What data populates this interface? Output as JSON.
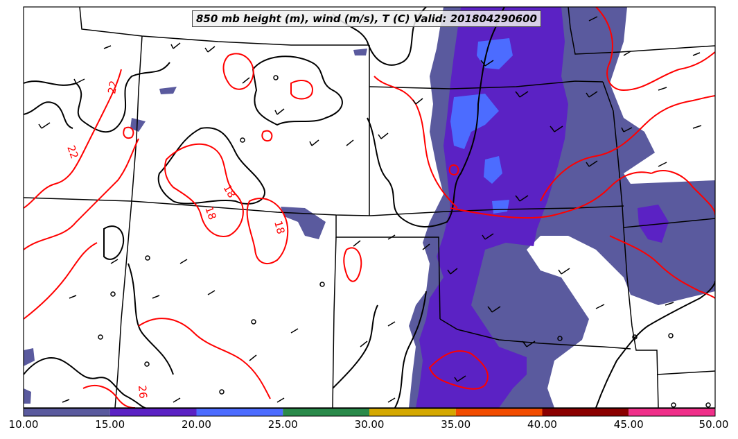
{
  "title": "850 mb height (m), wind (m/s), T (C) Valid: 201804290600",
  "colorbar": {
    "ticks": [
      "10.00",
      "15.00",
      "20.00",
      "25.00",
      "30.00",
      "35.00",
      "40.00",
      "45.00",
      "50.00"
    ],
    "colors": [
      "#5a5a9e",
      "#5b22c4",
      "#4c6cff",
      "#2a8a4a",
      "#d4a800",
      "#f24c00",
      "#8b0000",
      "#f0308a"
    ]
  },
  "contour_labels": {
    "red": [
      "22",
      "22",
      "18",
      "18",
      "18",
      "26"
    ]
  },
  "colors": {
    "wind_10_15": "#5a5a9e",
    "wind_15_20": "#5b22c4",
    "wind_20_25": "#4c6cff",
    "temperature_contour": "#ff0000",
    "height_contour": "#000000"
  }
}
